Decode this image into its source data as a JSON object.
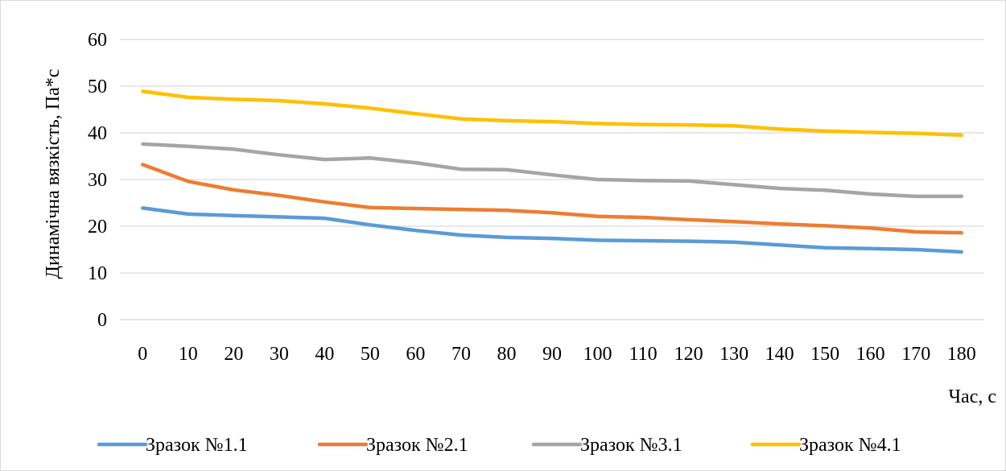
{
  "chart_data": {
    "type": "line",
    "title": "",
    "xlabel": "Час, с",
    "ylabel": "Динамічна вязкість, Па*с",
    "x": [
      0,
      10,
      20,
      30,
      40,
      50,
      60,
      70,
      80,
      90,
      100,
      110,
      120,
      130,
      140,
      150,
      160,
      170,
      180
    ],
    "ylim": [
      0,
      60
    ],
    "yticks": [
      0,
      10,
      20,
      30,
      40,
      50,
      60
    ],
    "grid": "horizontal",
    "legend_position": "bottom",
    "series": [
      {
        "name": "Зразок №1.1",
        "color": "#5B9BD5",
        "values": [
          23.9,
          22.6,
          22.3,
          22.0,
          21.7,
          20.3,
          19.1,
          18.1,
          17.6,
          17.4,
          17.0,
          16.9,
          16.8,
          16.6,
          16.0,
          15.4,
          15.2,
          15.0,
          14.5
        ]
      },
      {
        "name": "Зразок №2.1",
        "color": "#ED7D31",
        "values": [
          33.2,
          29.6,
          27.8,
          26.6,
          25.2,
          24.0,
          23.8,
          23.6,
          23.4,
          22.9,
          22.1,
          21.9,
          21.4,
          21.0,
          20.5,
          20.1,
          19.6,
          18.8,
          18.6
        ]
      },
      {
        "name": "Зразок №3.1",
        "color": "#A5A5A5",
        "values": [
          37.6,
          37.1,
          36.5,
          35.3,
          34.3,
          34.6,
          33.6,
          32.2,
          32.1,
          31.0,
          30.0,
          29.8,
          29.7,
          28.9,
          28.1,
          27.7,
          26.9,
          26.4,
          26.4
        ]
      },
      {
        "name": "Зразок №4.1",
        "color": "#FFC000",
        "values": [
          48.9,
          47.6,
          47.2,
          46.9,
          46.2,
          45.3,
          44.1,
          43.0,
          42.6,
          42.4,
          42.0,
          41.8,
          41.7,
          41.5,
          40.8,
          40.4,
          40.1,
          39.9,
          39.5
        ]
      }
    ]
  }
}
